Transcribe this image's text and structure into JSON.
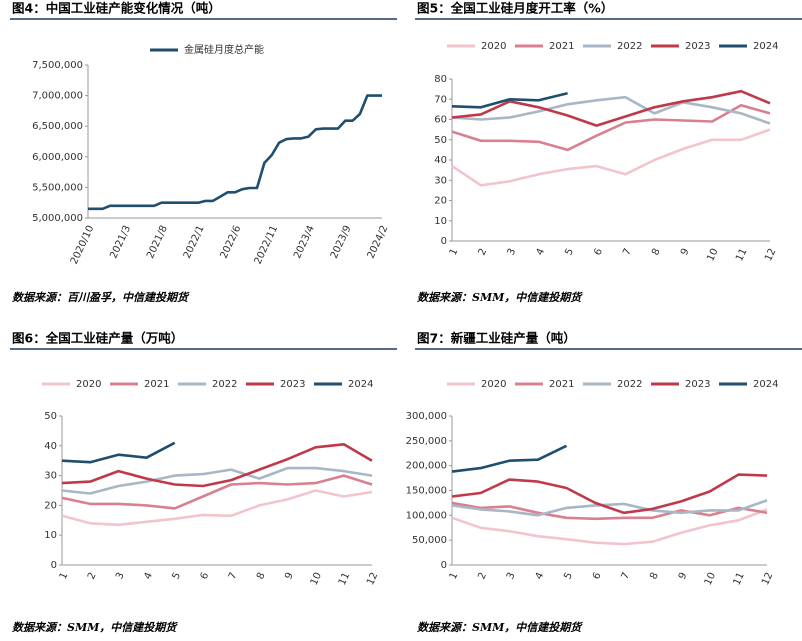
{
  "chart_data": [
    {
      "type": "line",
      "title": "图4：中国工业硅产能变化情况（吨）",
      "source": "数据来源：百川盈孚，中信建投期货",
      "categories": [
        "2020/10",
        null,
        null,
        null,
        null,
        "2021/3",
        null,
        null,
        null,
        null,
        "2021/8",
        null,
        null,
        null,
        null,
        "2022/1",
        null,
        null,
        null,
        null,
        "2022/6",
        null,
        null,
        null,
        null,
        "2022/11",
        null,
        null,
        null,
        null,
        "2023/4",
        null,
        null,
        null,
        null,
        "2023/9",
        null,
        null,
        null,
        null,
        "2024/2"
      ],
      "series": [
        {
          "name": "金属硅月度总产能",
          "color": "#1f4e6e",
          "values": [
            5150000,
            5150000,
            5150000,
            5200000,
            5200000,
            5200000,
            5200000,
            5200000,
            5200000,
            5200000,
            5250000,
            5250000,
            5250000,
            5250000,
            5250000,
            5250000,
            5280000,
            5280000,
            5350000,
            5420000,
            5420000,
            5470000,
            5490000,
            5490000,
            5900000,
            6030000,
            6230000,
            6290000,
            6300000,
            6300000,
            6330000,
            6450000,
            6460000,
            6460000,
            6460000,
            6590000,
            6590000,
            6700000,
            7000000,
            7000000,
            7000000
          ]
        }
      ],
      "ylim": [
        5000000,
        7500000
      ],
      "yticks": [
        {
          "value": 5000000,
          "label": "5,000,000"
        },
        {
          "value": 5500000,
          "label": "5,500,000"
        },
        {
          "value": 6000000,
          "label": "6,000,000"
        },
        {
          "value": 6500000,
          "label": "6,500,000"
        },
        {
          "value": 7000000,
          "label": "7,000,000"
        },
        {
          "value": 7500000,
          "label": "7,500,000"
        }
      ]
    },
    {
      "type": "line",
      "title": "图5：全国工业硅月度开工率（%）",
      "source": "数据来源：SMM，中信建投期货",
      "categories": [
        "1",
        "2",
        "3",
        "4",
        "5",
        "6",
        "7",
        "8",
        "9",
        "10",
        "11",
        "12"
      ],
      "series": [
        {
          "name": "2020",
          "color": "#f2c4cc",
          "values": [
            37,
            27.5,
            29.5,
            33,
            35.5,
            37,
            33,
            40,
            45.5,
            50,
            50,
            55
          ]
        },
        {
          "name": "2021",
          "color": "#d9808e",
          "values": [
            54,
            49.5,
            49.5,
            49,
            45,
            52,
            58.5,
            60,
            59.5,
            59,
            67,
            63
          ]
        },
        {
          "name": "2022",
          "color": "#a7b7c6",
          "values": [
            61,
            60,
            61,
            64,
            67.5,
            69.5,
            71,
            63,
            68.5,
            66,
            63,
            58
          ]
        },
        {
          "name": "2023",
          "color": "#c0394b",
          "values": [
            61,
            62.5,
            69,
            66,
            62,
            57,
            61.5,
            66,
            69,
            71,
            74,
            68
          ]
        },
        {
          "name": "2024",
          "color": "#1f4e6e",
          "values": [
            66.5,
            66,
            70,
            69.5,
            73,
            null,
            null,
            null,
            null,
            null,
            null,
            null
          ]
        }
      ],
      "ylim": [
        0,
        80
      ],
      "yticks": [
        0,
        10,
        20,
        30,
        40,
        50,
        60,
        70,
        80
      ]
    },
    {
      "type": "line",
      "title": "图6：全国工业硅产量（万吨）",
      "source": "数据来源：SMM，中信建投期货",
      "categories": [
        "1",
        "2",
        "3",
        "4",
        "5",
        "6",
        "7",
        "8",
        "9",
        "10",
        "11",
        "12"
      ],
      "series": [
        {
          "name": "2020",
          "color": "#f2c4cc",
          "values": [
            16.5,
            14,
            13.5,
            14.5,
            15.5,
            16.8,
            16.5,
            20,
            22,
            25,
            23,
            24.5
          ]
        },
        {
          "name": "2021",
          "color": "#d9808e",
          "values": [
            22.5,
            20.5,
            20.5,
            20,
            19,
            23,
            27,
            27.5,
            27,
            27.5,
            30,
            27
          ]
        },
        {
          "name": "2022",
          "color": "#a7b7c6",
          "values": [
            25,
            24,
            26.5,
            28,
            30,
            30.5,
            32,
            29,
            32.5,
            32.5,
            31.5,
            30
          ]
        },
        {
          "name": "2023",
          "color": "#c0394b",
          "values": [
            27.5,
            28,
            31.5,
            29,
            27,
            26.5,
            28.5,
            32,
            35.5,
            39.5,
            40.5,
            35
          ]
        },
        {
          "name": "2024",
          "color": "#1f4e6e",
          "values": [
            35,
            34.5,
            37,
            36,
            41,
            null,
            null,
            null,
            null,
            null,
            null,
            null
          ]
        }
      ],
      "ylim": [
        0,
        50
      ],
      "yticks": [
        0,
        10,
        20,
        30,
        40,
        50
      ]
    },
    {
      "type": "line",
      "title": "图7：新疆工业硅产量（吨）",
      "source": "数据来源：SMM，中信建投期货",
      "categories": [
        "1",
        "2",
        "3",
        "4",
        "5",
        "6",
        "7",
        "8",
        "9",
        "10",
        "11",
        "12"
      ],
      "series": [
        {
          "name": "2020",
          "color": "#f2c4cc",
          "values": [
            95000,
            75000,
            68000,
            58000,
            52000,
            45000,
            42000,
            47000,
            65000,
            80000,
            90000,
            112000
          ]
        },
        {
          "name": "2021",
          "color": "#d9808e",
          "values": [
            125000,
            115000,
            118000,
            105000,
            95000,
            93000,
            95000,
            95000,
            110000,
            100000,
            115000,
            105000
          ]
        },
        {
          "name": "2022",
          "color": "#a7b7c6",
          "values": [
            120000,
            112000,
            108000,
            100000,
            115000,
            120000,
            123000,
            110000,
            105000,
            110000,
            110000,
            130000
          ]
        },
        {
          "name": "2023",
          "color": "#c0394b",
          "values": [
            138000,
            145000,
            172000,
            168000,
            155000,
            125000,
            105000,
            113000,
            128000,
            148000,
            182000,
            180000
          ]
        },
        {
          "name": "2024",
          "color": "#1f4e6e",
          "values": [
            188000,
            195000,
            210000,
            212000,
            240000,
            null,
            null,
            null,
            null,
            null,
            null,
            null
          ]
        }
      ],
      "ylim": [
        0,
        300000
      ],
      "yticks": [
        0,
        {
          "value": 50000,
          "label": "50,000"
        },
        {
          "value": 100000,
          "label": "100,000"
        },
        {
          "value": 150000,
          "label": "150,000"
        },
        {
          "value": 200000,
          "label": "200,000"
        },
        {
          "value": 250000,
          "label": "250,000"
        },
        {
          "value": 300000,
          "label": "300,000"
        }
      ]
    }
  ]
}
